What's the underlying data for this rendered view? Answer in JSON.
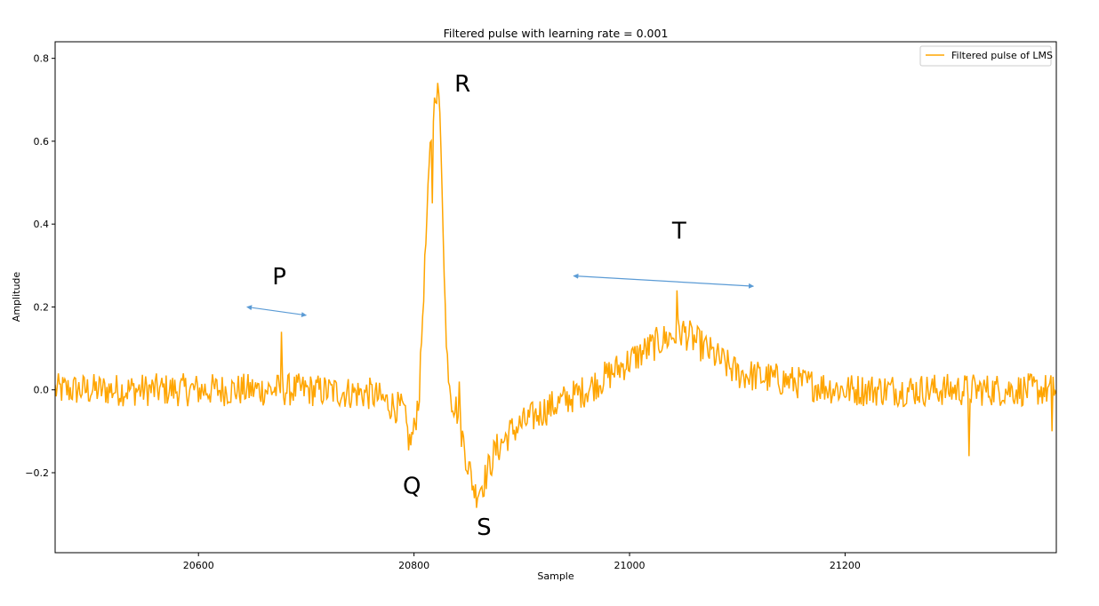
{
  "chart_data": {
    "type": "line",
    "title": "Filtered pulse with learning rate = 0.001",
    "xlabel": "Sample",
    "ylabel": "Amplitude",
    "xlim": [
      20467,
      21396
    ],
    "ylim": [
      -0.393,
      0.84
    ],
    "xticks": [
      20600,
      20800,
      21000,
      21200
    ],
    "xtick_labels": [
      "20600",
      "20800",
      "21000",
      "21200"
    ],
    "yticks": [
      -0.2,
      0.0,
      0.2,
      0.4,
      0.6,
      0.8
    ],
    "ytick_labels": [
      "−0.2",
      "0.0",
      "0.2",
      "0.4",
      "0.6",
      "0.8"
    ],
    "grid": false,
    "legend_position": "top-right",
    "series": [
      {
        "name": "Filtered pulse of LMS",
        "color": "#FFA500",
        "x_start": 20467,
        "x_end": 21396,
        "noise_amplitude": 0.04,
        "baseline": [
          [
            20467,
            0.0
          ],
          [
            20600,
            0.0
          ],
          [
            20700,
            0.0
          ],
          [
            20760,
            -0.01
          ],
          [
            20790,
            -0.05
          ],
          [
            20796,
            -0.13
          ],
          [
            20800,
            -0.1
          ],
          [
            20805,
            0.0
          ],
          [
            20810,
            0.3
          ],
          [
            20815,
            0.58
          ],
          [
            20820,
            0.72
          ],
          [
            20823,
            0.72
          ],
          [
            20826,
            0.5
          ],
          [
            20830,
            0.1
          ],
          [
            20835,
            -0.02
          ],
          [
            20840,
            -0.05
          ],
          [
            20850,
            -0.18
          ],
          [
            20857,
            -0.25
          ],
          [
            20865,
            -0.22
          ],
          [
            20875,
            -0.15
          ],
          [
            20890,
            -0.1
          ],
          [
            20920,
            -0.05
          ],
          [
            20960,
            0.0
          ],
          [
            21000,
            0.07
          ],
          [
            21030,
            0.12
          ],
          [
            21050,
            0.14
          ],
          [
            21070,
            0.1
          ],
          [
            21100,
            0.04
          ],
          [
            21150,
            0.02
          ],
          [
            21200,
            0.0
          ],
          [
            21396,
            0.0
          ]
        ],
        "spikes": [
          [
            20677,
            0.14
          ],
          [
            20817,
            0.45
          ],
          [
            20842,
            0.02
          ],
          [
            21044,
            0.24
          ],
          [
            21315,
            -0.16
          ],
          [
            21392,
            -0.1
          ]
        ]
      }
    ],
    "annotations": {
      "letters": [
        {
          "text": "P",
          "x": 20675,
          "y": 0.255
        },
        {
          "text": "R",
          "x": 20845,
          "y": 0.72
        },
        {
          "text": "Q",
          "x": 20798,
          "y": -0.25
        },
        {
          "text": "S",
          "x": 20865,
          "y": -0.35
        },
        {
          "text": "T",
          "x": 21046,
          "y": 0.365
        }
      ],
      "arrows": [
        {
          "from": [
            20645,
            0.2
          ],
          "to": [
            20700,
            0.18
          ],
          "color": "#5B9BD5"
        },
        {
          "from": [
            20948,
            0.275
          ],
          "to": [
            21115,
            0.25
          ],
          "color": "#5B9BD5"
        }
      ]
    }
  }
}
